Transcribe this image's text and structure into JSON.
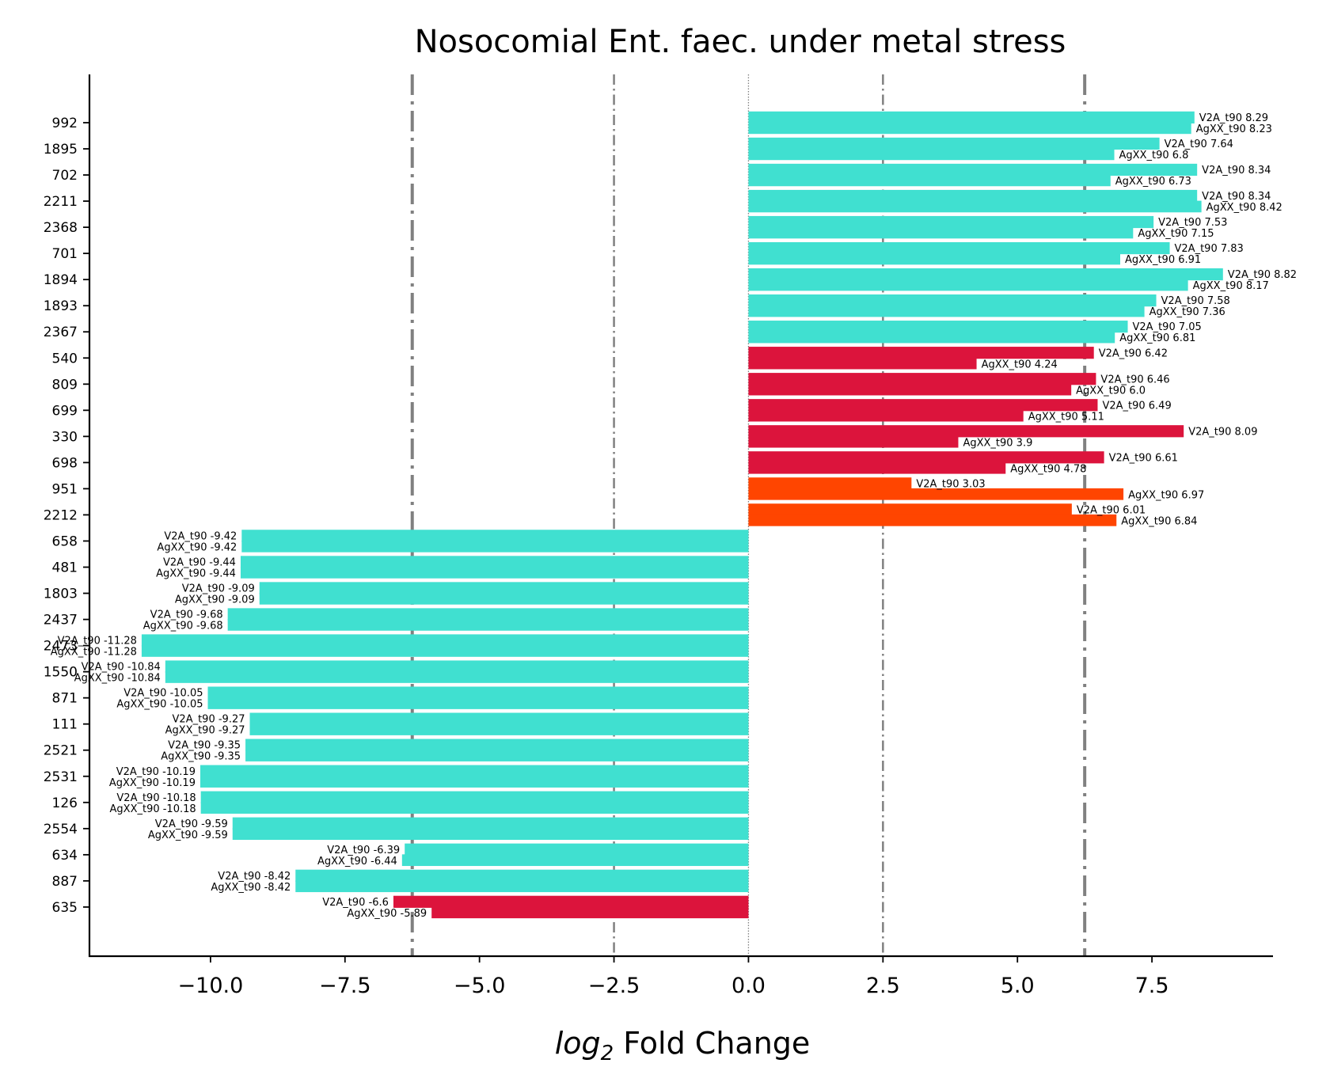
{
  "chart_data": {
    "type": "bar",
    "orientation": "horizontal",
    "title": "Nosocomial Ent. faec. under metal stress",
    "xlabel": "log",
    "xlabel_sub": "2",
    "xlabel_rest": " Fold Change",
    "ylabel": "",
    "xlim": [
      -12.25,
      9.75
    ],
    "xticks": [
      -10.0,
      -7.5,
      -5.0,
      -2.5,
      0.0,
      2.5,
      5.0,
      7.5
    ],
    "xtick_labels": [
      "−10.0",
      "−7.5",
      "−5.0",
      "−2.5",
      "0.0",
      "2.5",
      "5.0",
      "7.5"
    ],
    "grid": false,
    "reference_lines": [
      {
        "x": -6.25,
        "style": "thick-dashdot"
      },
      {
        "x": -2.5,
        "style": "thin-dashdot"
      },
      {
        "x": 0.0,
        "style": "dotted"
      },
      {
        "x": 2.5,
        "style": "thin-dashdot"
      },
      {
        "x": 6.25,
        "style": "thick-dashdot"
      }
    ],
    "colors": {
      "turquoise": "#40E0D0",
      "crimson": "#DC143C",
      "orangered": "#FF4500",
      "refline": "#808080"
    },
    "series": [
      {
        "name": "V2A_t90"
      },
      {
        "name": "AgXX_t90"
      }
    ],
    "categories": [
      "992",
      "1895",
      "702",
      "2211",
      "2368",
      "701",
      "1894",
      "1893",
      "2367",
      "540",
      "809",
      "699",
      "330",
      "698",
      "951",
      "2212",
      "658",
      "481",
      "1803",
      "2437",
      "2473",
      "1550",
      "871",
      "111",
      "2521",
      "2531",
      "126",
      "2554",
      "634",
      "887",
      "635"
    ],
    "rows": [
      {
        "v2a": 8.29,
        "v2a_label": "V2A_t90 8.29",
        "agxx": 8.23,
        "agxx_label": "AgXX_t90 8.23",
        "color": "turquoise"
      },
      {
        "v2a": 7.64,
        "v2a_label": "V2A_t90 7.64",
        "agxx": 6.8,
        "agxx_label": "AgXX_t90 6.8",
        "color": "turquoise"
      },
      {
        "v2a": 8.34,
        "v2a_label": "V2A_t90 8.34",
        "agxx": 6.73,
        "agxx_label": "AgXX_t90 6.73",
        "color": "turquoise"
      },
      {
        "v2a": 8.34,
        "v2a_label": "V2A_t90 8.34",
        "agxx": 8.42,
        "agxx_label": "AgXX_t90 8.42",
        "color": "turquoise"
      },
      {
        "v2a": 7.53,
        "v2a_label": "V2A_t90 7.53",
        "agxx": 7.15,
        "agxx_label": "AgXX_t90 7.15",
        "color": "turquoise"
      },
      {
        "v2a": 7.83,
        "v2a_label": "V2A_t90 7.83",
        "agxx": 6.91,
        "agxx_label": "AgXX_t90 6.91",
        "color": "turquoise"
      },
      {
        "v2a": 8.82,
        "v2a_label": "V2A_t90 8.82",
        "agxx": 8.17,
        "agxx_label": "AgXX_t90 8.17",
        "color": "turquoise"
      },
      {
        "v2a": 7.58,
        "v2a_label": "V2A_t90 7.58",
        "agxx": 7.36,
        "agxx_label": "AgXX_t90 7.36",
        "color": "turquoise"
      },
      {
        "v2a": 7.05,
        "v2a_label": "V2A_t90 7.05",
        "agxx": 6.81,
        "agxx_label": "AgXX_t90 6.81",
        "color": "turquoise"
      },
      {
        "v2a": 6.42,
        "v2a_label": "V2A_t90 6.42",
        "agxx": 4.24,
        "agxx_label": "AgXX_t90 4.24",
        "color": "crimson"
      },
      {
        "v2a": 6.46,
        "v2a_label": "V2A_t90 6.46",
        "agxx": 6.0,
        "agxx_label": "AgXX_t90 6.0",
        "color": "crimson"
      },
      {
        "v2a": 6.49,
        "v2a_label": "V2A_t90 6.49",
        "agxx": 5.11,
        "agxx_label": "AgXX_t90 5.11",
        "color": "crimson"
      },
      {
        "v2a": 8.09,
        "v2a_label": "V2A_t90 8.09",
        "agxx": 3.9,
        "agxx_label": "AgXX_t90 3.9",
        "color": "crimson"
      },
      {
        "v2a": 6.61,
        "v2a_label": "V2A_t90 6.61",
        "agxx": 4.78,
        "agxx_label": "AgXX_t90 4.78",
        "color": "crimson"
      },
      {
        "v2a": 3.03,
        "v2a_label": "V2A_t90 3.03",
        "agxx": 6.97,
        "agxx_label": "AgXX_t90 6.97",
        "color": "orangered"
      },
      {
        "v2a": 6.01,
        "v2a_label": "V2A_t90 6.01",
        "agxx": 6.84,
        "agxx_label": "AgXX_t90 6.84",
        "color": "orangered"
      },
      {
        "v2a": -9.42,
        "v2a_label": "V2A_t90 -9.42",
        "agxx": -9.42,
        "agxx_label": "AgXX_t90 -9.42",
        "color": "turquoise"
      },
      {
        "v2a": -9.44,
        "v2a_label": "V2A_t90 -9.44",
        "agxx": -9.44,
        "agxx_label": "AgXX_t90 -9.44",
        "color": "turquoise"
      },
      {
        "v2a": -9.09,
        "v2a_label": "V2A_t90 -9.09",
        "agxx": -9.09,
        "agxx_label": "AgXX_t90 -9.09",
        "color": "turquoise"
      },
      {
        "v2a": -9.68,
        "v2a_label": "V2A_t90 -9.68",
        "agxx": -9.68,
        "agxx_label": "AgXX_t90 -9.68",
        "color": "turquoise"
      },
      {
        "v2a": -11.28,
        "v2a_label": "V2A_t90 -11.28",
        "agxx": -11.28,
        "agxx_label": "AgXX_t90 -11.28",
        "color": "turquoise"
      },
      {
        "v2a": -10.84,
        "v2a_label": "V2A_t90 -10.84",
        "agxx": -10.84,
        "agxx_label": "AgXX_t90 -10.84",
        "color": "turquoise"
      },
      {
        "v2a": -10.05,
        "v2a_label": "V2A_t90 -10.05",
        "agxx": -10.05,
        "agxx_label": "AgXX_t90 -10.05",
        "color": "turquoise"
      },
      {
        "v2a": -9.27,
        "v2a_label": "V2A_t90 -9.27",
        "agxx": -9.27,
        "agxx_label": "AgXX_t90 -9.27",
        "color": "turquoise"
      },
      {
        "v2a": -9.35,
        "v2a_label": "V2A_t90 -9.35",
        "agxx": -9.35,
        "agxx_label": "AgXX_t90 -9.35",
        "color": "turquoise"
      },
      {
        "v2a": -10.19,
        "v2a_label": "V2A_t90 -10.19",
        "agxx": -10.19,
        "agxx_label": "AgXX_t90 -10.19",
        "color": "turquoise"
      },
      {
        "v2a": -10.18,
        "v2a_label": "V2A_t90 -10.18",
        "agxx": -10.18,
        "agxx_label": "AgXX_t90 -10.18",
        "color": "turquoise"
      },
      {
        "v2a": -9.59,
        "v2a_label": "V2A_t90 -9.59",
        "agxx": -9.59,
        "agxx_label": "AgXX_t90 -9.59",
        "color": "turquoise"
      },
      {
        "v2a": -6.39,
        "v2a_label": "V2A_t90 -6.39",
        "agxx": -6.44,
        "agxx_label": "AgXX_t90 -6.44",
        "color": "turquoise"
      },
      {
        "v2a": -8.42,
        "v2a_label": "V2A_t90 -8.42",
        "agxx": -8.42,
        "agxx_label": "AgXX_t90 -8.42",
        "color": "turquoise"
      },
      {
        "v2a": -6.6,
        "v2a_label": "V2A_t90 -6.6",
        "agxx": -5.89,
        "agxx_label": "AgXX_t90 -5.89",
        "color": "crimson"
      }
    ]
  }
}
